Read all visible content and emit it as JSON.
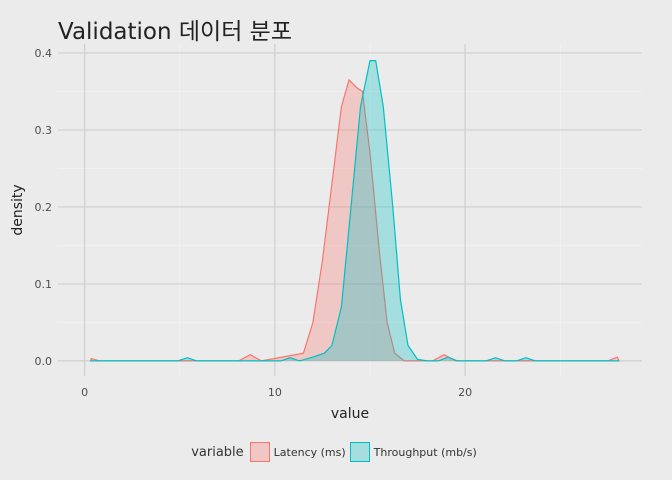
{
  "chart_data": {
    "type": "area",
    "title": "Validation 데이터 분포",
    "xlabel": "value",
    "ylabel": "density",
    "xlim": [
      -1.4,
      29.3
    ],
    "ylim": [
      -0.0196,
      0.4116
    ],
    "xticks": [
      0,
      10,
      20
    ],
    "yticks": [
      0.0,
      0.1,
      0.2,
      0.3,
      0.4
    ],
    "ytick_labels": [
      "0.0",
      "0.1",
      "0.2",
      "0.3",
      "0.4"
    ],
    "grid": true,
    "legend_title": "variable",
    "legend_position": "bottom",
    "series": [
      {
        "name": "Latency (ms)",
        "line_color": "#f8766d",
        "fill_color": "#f8766d",
        "points": [
          [
            0.3,
            0.0
          ],
          [
            0.35,
            0.003
          ],
          [
            0.8,
            0.0
          ],
          [
            8.1,
            0.0
          ],
          [
            8.7,
            0.008
          ],
          [
            9.3,
            0.0
          ],
          [
            11.5,
            0.01
          ],
          [
            12.0,
            0.05
          ],
          [
            12.5,
            0.13
          ],
          [
            13.0,
            0.23
          ],
          [
            13.5,
            0.33
          ],
          [
            13.9,
            0.365
          ],
          [
            14.3,
            0.355
          ],
          [
            14.6,
            0.35
          ],
          [
            15.0,
            0.27
          ],
          [
            15.5,
            0.14
          ],
          [
            15.9,
            0.05
          ],
          [
            16.3,
            0.01
          ],
          [
            16.8,
            0.0
          ],
          [
            18.3,
            0.0
          ],
          [
            18.9,
            0.008
          ],
          [
            19.5,
            0.0
          ],
          [
            27.5,
            0.0
          ],
          [
            28.0,
            0.005
          ],
          [
            28.1,
            0.0
          ]
        ]
      },
      {
        "name": "Throughput (mb/s)",
        "line_color": "#00bfc4",
        "fill_color": "#00bfc4",
        "points": [
          [
            0.3,
            0.0
          ],
          [
            4.9,
            0.0
          ],
          [
            5.4,
            0.004
          ],
          [
            5.9,
            0.0
          ],
          [
            10.3,
            0.0
          ],
          [
            10.8,
            0.004
          ],
          [
            11.3,
            0.0
          ],
          [
            12.0,
            0.005
          ],
          [
            12.6,
            0.01
          ],
          [
            13.0,
            0.02
          ],
          [
            13.5,
            0.07
          ],
          [
            14.0,
            0.2
          ],
          [
            14.5,
            0.33
          ],
          [
            15.0,
            0.39
          ],
          [
            15.3,
            0.39
          ],
          [
            15.7,
            0.33
          ],
          [
            16.2,
            0.2
          ],
          [
            16.6,
            0.08
          ],
          [
            17.0,
            0.02
          ],
          [
            17.5,
            0.002
          ],
          [
            18.0,
            0.0
          ],
          [
            18.6,
            0.0
          ],
          [
            19.1,
            0.005
          ],
          [
            19.6,
            0.0
          ],
          [
            21.1,
            0.0
          ],
          [
            21.6,
            0.004
          ],
          [
            22.1,
            0.0
          ],
          [
            22.7,
            0.0
          ],
          [
            23.2,
            0.004
          ],
          [
            23.7,
            0.0
          ],
          [
            28.1,
            0.0
          ]
        ]
      }
    ]
  }
}
